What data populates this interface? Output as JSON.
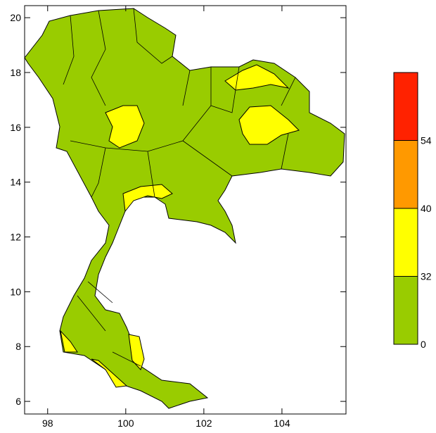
{
  "map": {
    "xlim": [
      97.41,
      105.64
    ],
    "ylim": [
      5.54,
      20.44
    ],
    "xticks": [
      98,
      100,
      102,
      104
    ],
    "yticks": [
      6,
      8,
      10,
      12,
      14,
      16,
      18,
      20
    ],
    "colorbar": {
      "levels": [
        0,
        32,
        40,
        54
      ],
      "colors": [
        "#99cc00",
        "#ffff00",
        "#ff9900",
        "#ff2200"
      ]
    }
  }
}
